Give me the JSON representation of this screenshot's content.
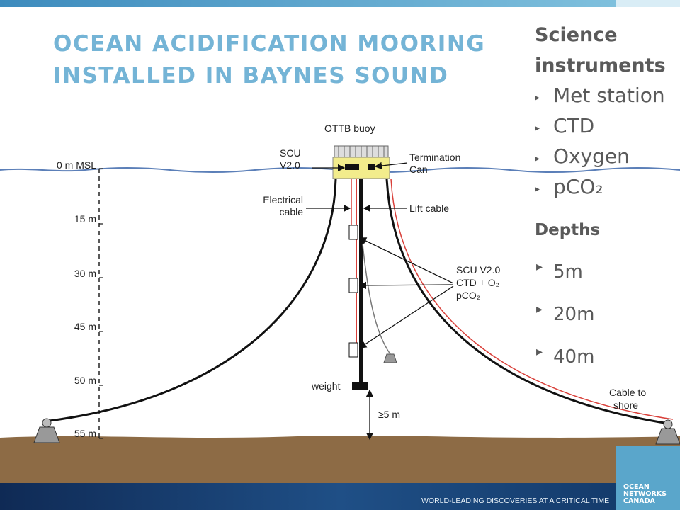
{
  "title": {
    "lines": [
      "OCEAN ACIDIFICATION MOORING",
      "INSTALLED IN BAYNES SOUND"
    ]
  },
  "sidebar": {
    "instruments_heading": [
      "Science",
      "instruments"
    ],
    "instruments": [
      "Met station",
      "CTD",
      "Oxygen",
      "pCO₂"
    ],
    "depths_heading": "Depths",
    "depths": [
      "5m",
      "20m",
      "40m"
    ]
  },
  "diagram": {
    "buoy_label": "OTTB buoy",
    "scu_label": [
      "SCU",
      "V2.0"
    ],
    "termination_label": [
      "Termination",
      "Can"
    ],
    "depth_labels": [
      "0 m MSL",
      "15 m",
      "30 m",
      "45 m",
      "50 m",
      "55 m"
    ],
    "electrical_cable_label": [
      "Electrical",
      "cable"
    ],
    "lift_cable_label": "Lift cable",
    "instrument_label": [
      "SCU V2.0",
      "CTD + O₂",
      "pCO₂"
    ],
    "weight_label": "weight",
    "clearance_label": "≥5 m",
    "shore_label": [
      "Cable to",
      "shore"
    ]
  },
  "footer": {
    "tagline": "WORLD-LEADING DISCOVERIES AT A CRITICAL TIME",
    "logo": [
      "OCEAN",
      "NETWORKS",
      "CANADA"
    ]
  }
}
